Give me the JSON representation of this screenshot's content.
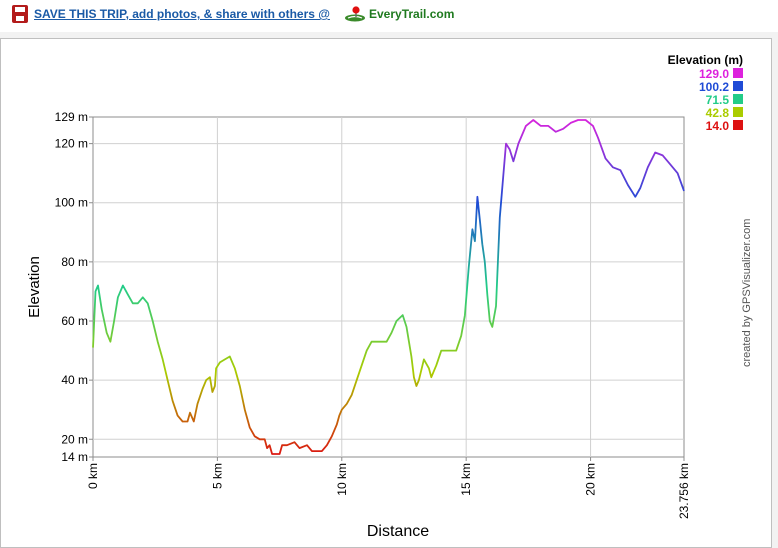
{
  "topbar": {
    "save_link": "SAVE THIS TRIP, add photos, & share with others @",
    "logo_text": "EveryTrail.com"
  },
  "credit": "created by GPSVisualizer.com",
  "legend": {
    "title": "Elevation (m)",
    "entries": [
      {
        "label": "129.0",
        "color": "#dd22dd"
      },
      {
        "label": "100.2",
        "color": "#1f4bd6"
      },
      {
        "label": "71.5",
        "color": "#22cc88"
      },
      {
        "label": "42.8",
        "color": "#aacc00"
      },
      {
        "label": "14.0",
        "color": "#dd1111"
      }
    ]
  },
  "chart_data": {
    "type": "line",
    "xlabel": "Distance",
    "ylabel": "Elevation",
    "xlim": [
      0,
      23.756
    ],
    "ylim": [
      14,
      129
    ],
    "x_ticks": [
      0,
      5,
      10,
      15,
      20,
      23.756
    ],
    "x_tick_labels": [
      "0 km",
      "5 km",
      "10 km",
      "15 km",
      "20 km",
      "23.756 km"
    ],
    "y_ticks": [
      14,
      20,
      40,
      60,
      80,
      100,
      120,
      129
    ],
    "y_tick_labels": [
      "14 m",
      "20 m",
      "40 m",
      "60 m",
      "80 m",
      "100 m",
      "120 m",
      "129 m"
    ],
    "grid": true,
    "legend_position": "top-right",
    "color_scale": {
      "min": 14,
      "max": 129
    },
    "series": [
      {
        "points": [
          [
            0,
            51
          ],
          [
            0.1,
            70
          ],
          [
            0.2,
            72
          ],
          [
            0.35,
            64
          ],
          [
            0.55,
            56
          ],
          [
            0.7,
            53
          ],
          [
            0.85,
            60
          ],
          [
            1.0,
            68
          ],
          [
            1.2,
            72
          ],
          [
            1.4,
            69
          ],
          [
            1.6,
            66
          ],
          [
            1.8,
            66
          ],
          [
            2.0,
            68
          ],
          [
            2.2,
            66
          ],
          [
            2.4,
            60
          ],
          [
            2.6,
            53
          ],
          [
            2.8,
            47
          ],
          [
            3.0,
            40
          ],
          [
            3.2,
            33
          ],
          [
            3.4,
            28
          ],
          [
            3.6,
            26
          ],
          [
            3.8,
            26
          ],
          [
            3.9,
            29
          ],
          [
            4.05,
            26
          ],
          [
            4.2,
            32
          ],
          [
            4.4,
            37
          ],
          [
            4.55,
            40
          ],
          [
            4.7,
            41
          ],
          [
            4.8,
            36
          ],
          [
            4.9,
            38
          ],
          [
            4.95,
            44
          ],
          [
            5.1,
            46
          ],
          [
            5.3,
            47
          ],
          [
            5.5,
            48
          ],
          [
            5.7,
            44
          ],
          [
            5.9,
            38
          ],
          [
            6.1,
            30
          ],
          [
            6.3,
            24
          ],
          [
            6.5,
            21
          ],
          [
            6.7,
            20
          ],
          [
            6.9,
            20
          ],
          [
            7.0,
            17
          ],
          [
            7.1,
            18
          ],
          [
            7.2,
            15
          ],
          [
            7.5,
            15
          ],
          [
            7.6,
            18
          ],
          [
            7.8,
            18
          ],
          [
            8.1,
            19
          ],
          [
            8.3,
            17
          ],
          [
            8.6,
            18
          ],
          [
            8.8,
            16
          ],
          [
            9.2,
            16
          ],
          [
            9.4,
            18
          ],
          [
            9.6,
            21
          ],
          [
            9.8,
            25
          ],
          [
            9.9,
            28
          ],
          [
            10.0,
            30
          ],
          [
            10.2,
            32
          ],
          [
            10.4,
            35
          ],
          [
            10.6,
            40
          ],
          [
            10.8,
            45
          ],
          [
            11.0,
            50
          ],
          [
            11.2,
            53
          ],
          [
            11.5,
            53
          ],
          [
            11.8,
            53
          ],
          [
            12.0,
            56
          ],
          [
            12.2,
            60
          ],
          [
            12.45,
            62
          ],
          [
            12.6,
            58
          ],
          [
            12.8,
            48
          ],
          [
            12.9,
            41
          ],
          [
            13.0,
            38
          ],
          [
            13.1,
            40
          ],
          [
            13.3,
            47
          ],
          [
            13.5,
            44
          ],
          [
            13.6,
            41
          ],
          [
            13.8,
            45
          ],
          [
            14.0,
            50
          ],
          [
            14.3,
            50
          ],
          [
            14.6,
            50
          ],
          [
            14.8,
            55
          ],
          [
            14.95,
            62
          ],
          [
            15.1,
            78
          ],
          [
            15.25,
            91
          ],
          [
            15.35,
            87
          ],
          [
            15.45,
            102
          ],
          [
            15.55,
            94
          ],
          [
            15.65,
            86
          ],
          [
            15.75,
            80
          ],
          [
            15.85,
            69
          ],
          [
            15.95,
            60
          ],
          [
            16.05,
            58
          ],
          [
            16.2,
            65
          ],
          [
            16.35,
            95
          ],
          [
            16.5,
            110
          ],
          [
            16.6,
            120
          ],
          [
            16.75,
            118
          ],
          [
            16.9,
            114
          ],
          [
            17.1,
            120
          ],
          [
            17.4,
            126
          ],
          [
            17.7,
            128
          ],
          [
            18.0,
            126
          ],
          [
            18.3,
            126
          ],
          [
            18.6,
            124
          ],
          [
            18.9,
            125
          ],
          [
            19.2,
            127
          ],
          [
            19.5,
            128
          ],
          [
            19.8,
            128
          ],
          [
            20.1,
            126
          ],
          [
            20.3,
            122
          ],
          [
            20.6,
            115
          ],
          [
            20.9,
            112
          ],
          [
            21.2,
            111
          ],
          [
            21.5,
            106
          ],
          [
            21.8,
            102
          ],
          [
            22.0,
            105
          ],
          [
            22.3,
            112
          ],
          [
            22.6,
            117
          ],
          [
            22.9,
            116
          ],
          [
            23.2,
            113
          ],
          [
            23.5,
            110
          ],
          [
            23.756,
            104
          ]
        ]
      }
    ]
  }
}
